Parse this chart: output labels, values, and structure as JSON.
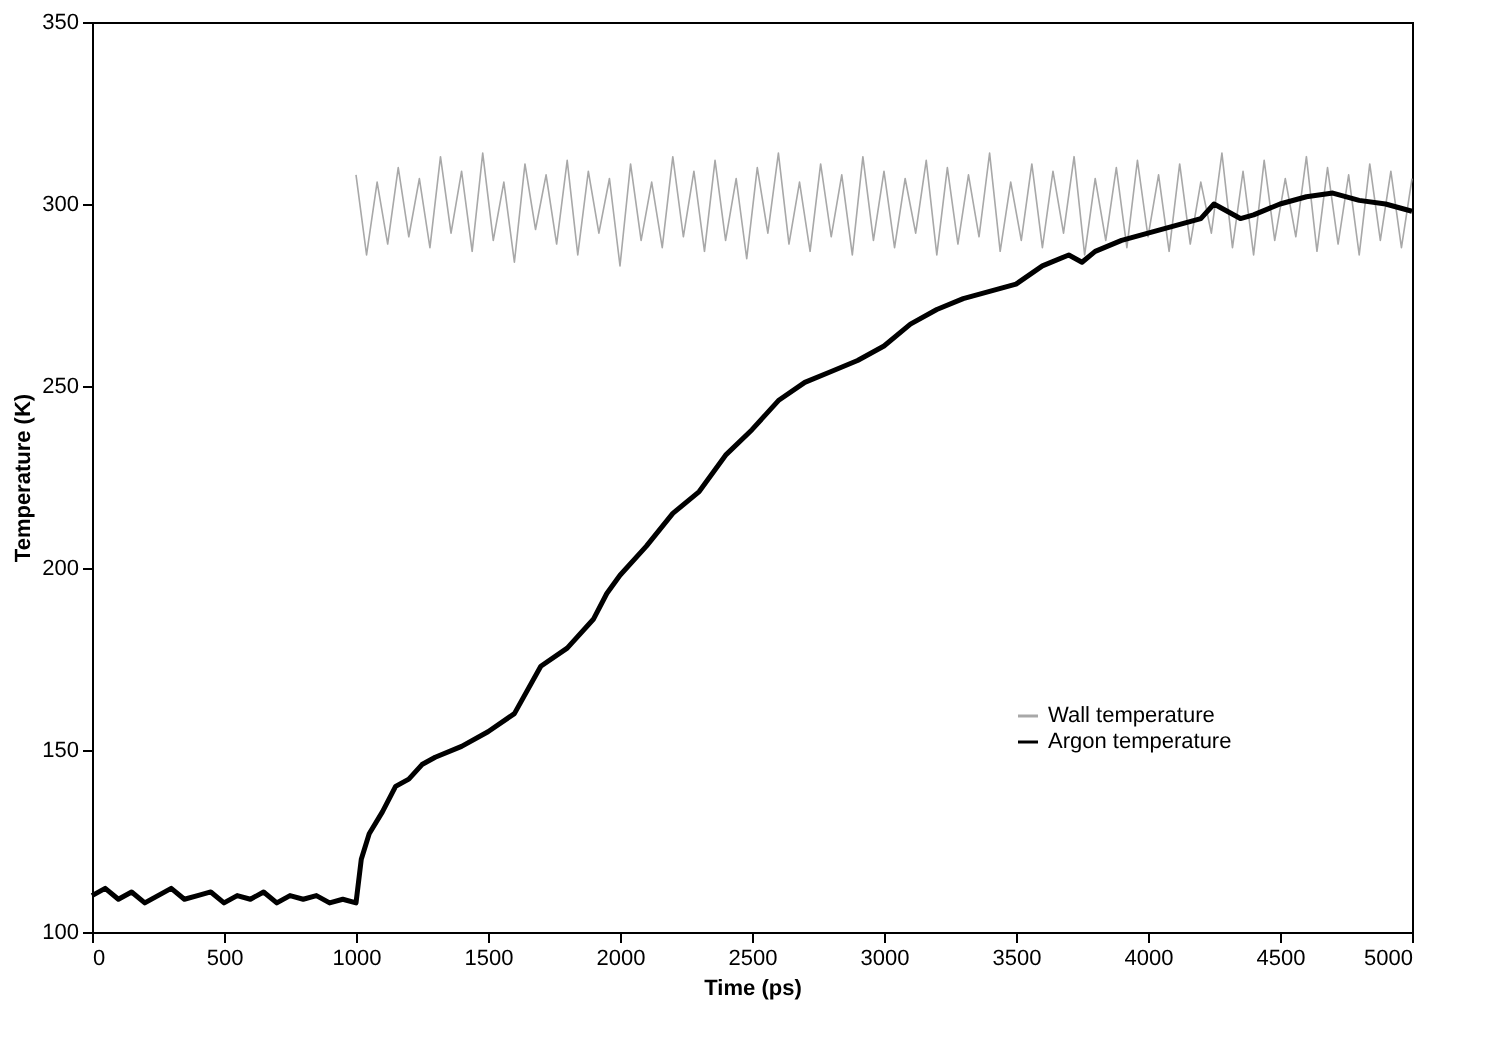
{
  "chart_data": {
    "type": "line",
    "xlabel": "Time (ps)",
    "ylabel": "Temperature (K)",
    "xlim": [
      0,
      5000
    ],
    "ylim": [
      100,
      350
    ],
    "xticks": [
      0,
      500,
      1000,
      1500,
      2000,
      2500,
      3000,
      3500,
      4000,
      4500,
      5000
    ],
    "yticks": [
      100,
      150,
      200,
      250,
      300,
      350
    ],
    "grid": false,
    "legend": "bottom right",
    "line_style": "solid",
    "marker": "none",
    "series": [
      {
        "name": "Wall temperature",
        "color": "#a8a8a8",
        "x": [
          1000,
          1040,
          1080,
          1120,
          1160,
          1200,
          1240,
          1280,
          1320,
          1360,
          1400,
          1440,
          1480,
          1520,
          1560,
          1600,
          1640,
          1680,
          1720,
          1760,
          1800,
          1840,
          1880,
          1920,
          1960,
          2000,
          2040,
          2080,
          2120,
          2160,
          2200,
          2240,
          2280,
          2320,
          2360,
          2400,
          2440,
          2480,
          2520,
          2560,
          2600,
          2640,
          2680,
          2720,
          2760,
          2800,
          2840,
          2880,
          2920,
          2960,
          3000,
          3040,
          3080,
          3120,
          3160,
          3200,
          3240,
          3280,
          3320,
          3360,
          3400,
          3440,
          3480,
          3520,
          3560,
          3600,
          3640,
          3680,
          3720,
          3760,
          3800,
          3840,
          3880,
          3920,
          3960,
          4000,
          4040,
          4080,
          4120,
          4160,
          4200,
          4240,
          4280,
          4320,
          4360,
          4400,
          4440,
          4480,
          4520,
          4560,
          4600,
          4640,
          4680,
          4720,
          4760,
          4800,
          4840,
          4880,
          4920,
          4960,
          5000
        ],
        "values": [
          308,
          286,
          306,
          289,
          310,
          291,
          307,
          288,
          313,
          292,
          309,
          287,
          314,
          290,
          306,
          284,
          311,
          293,
          308,
          289,
          312,
          286,
          309,
          292,
          307,
          283,
          311,
          290,
          306,
          288,
          313,
          291,
          309,
          287,
          312,
          290,
          307,
          285,
          310,
          292,
          314,
          289,
          306,
          287,
          311,
          291,
          308,
          286,
          313,
          290,
          309,
          288,
          307,
          292,
          312,
          286,
          310,
          289,
          308,
          291,
          314,
          287,
          306,
          290,
          311,
          288,
          309,
          292,
          313,
          286,
          307,
          290,
          310,
          288,
          312,
          291,
          308,
          287,
          311,
          289,
          306,
          292,
          314,
          288,
          309,
          286,
          312,
          290,
          307,
          291,
          313,
          287,
          310,
          289,
          308,
          286,
          311,
          290,
          309,
          288,
          307
        ]
      },
      {
        "name": "Argon temperature",
        "color": "#000000",
        "x": [
          0,
          50,
          100,
          150,
          200,
          250,
          300,
          350,
          400,
          450,
          500,
          550,
          600,
          650,
          700,
          750,
          800,
          850,
          900,
          950,
          1000,
          1020,
          1050,
          1100,
          1150,
          1200,
          1250,
          1300,
          1400,
          1500,
          1600,
          1700,
          1800,
          1900,
          1950,
          2000,
          2100,
          2200,
          2300,
          2400,
          2500,
          2600,
          2700,
          2800,
          2900,
          3000,
          3100,
          3200,
          3300,
          3400,
          3500,
          3600,
          3700,
          3750,
          3800,
          3900,
          4000,
          4100,
          4200,
          4250,
          4300,
          4350,
          4400,
          4500,
          4600,
          4700,
          4800,
          4900,
          5000
        ],
        "values": [
          110,
          112,
          109,
          111,
          108,
          110,
          112,
          109,
          110,
          111,
          108,
          110,
          109,
          111,
          108,
          110,
          109,
          110,
          108,
          109,
          108,
          120,
          127,
          133,
          140,
          142,
          146,
          148,
          151,
          155,
          160,
          173,
          178,
          186,
          193,
          198,
          206,
          215,
          221,
          231,
          238,
          246,
          251,
          254,
          257,
          261,
          267,
          271,
          274,
          276,
          278,
          283,
          286,
          284,
          287,
          290,
          292,
          294,
          296,
          300,
          298,
          296,
          297,
          300,
          302,
          303,
          301,
          300,
          298
        ]
      }
    ]
  }
}
